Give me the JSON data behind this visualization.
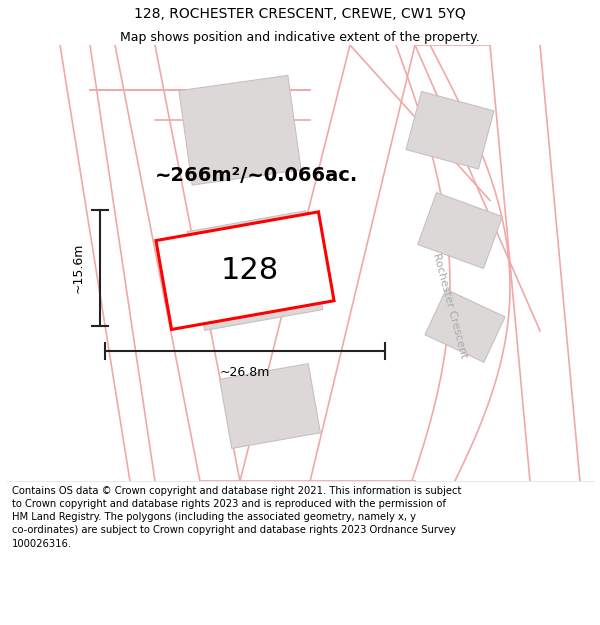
{
  "title_line1": "128, ROCHESTER CRESCENT, CREWE, CW1 5YQ",
  "title_line2": "Map shows position and indicative extent of the property.",
  "footer_text": "Contains OS data © Crown copyright and database right 2021. This information is subject\nto Crown copyright and database rights 2023 and is reproduced with the permission of\nHM Land Registry. The polygons (including the associated geometry, namely x, y\nco-ordinates) are subject to Crown copyright and database rights 2023 Ordnance Survey\n100026316.",
  "area_label": "~266m²/~0.066ac.",
  "width_label": "~26.8m",
  "height_label": "~15.6m",
  "house_number": "128",
  "bg_color": "#ffffff",
  "map_bg": "#ffffff",
  "road_line_color": "#f0a8a8",
  "building_fill": "#ddd8d8",
  "building_edge": "#c8c0c0",
  "highlight_fill": "#ffffff",
  "highlight_edge": "#ff0000",
  "dim_line_color": "#222222",
  "road_label_color": "#aaaaaa",
  "title_fontsize": 10,
  "subtitle_fontsize": 9,
  "footer_fontsize": 7.2,
  "area_fontsize": 14,
  "dim_fontsize": 9,
  "house_fontsize": 22
}
